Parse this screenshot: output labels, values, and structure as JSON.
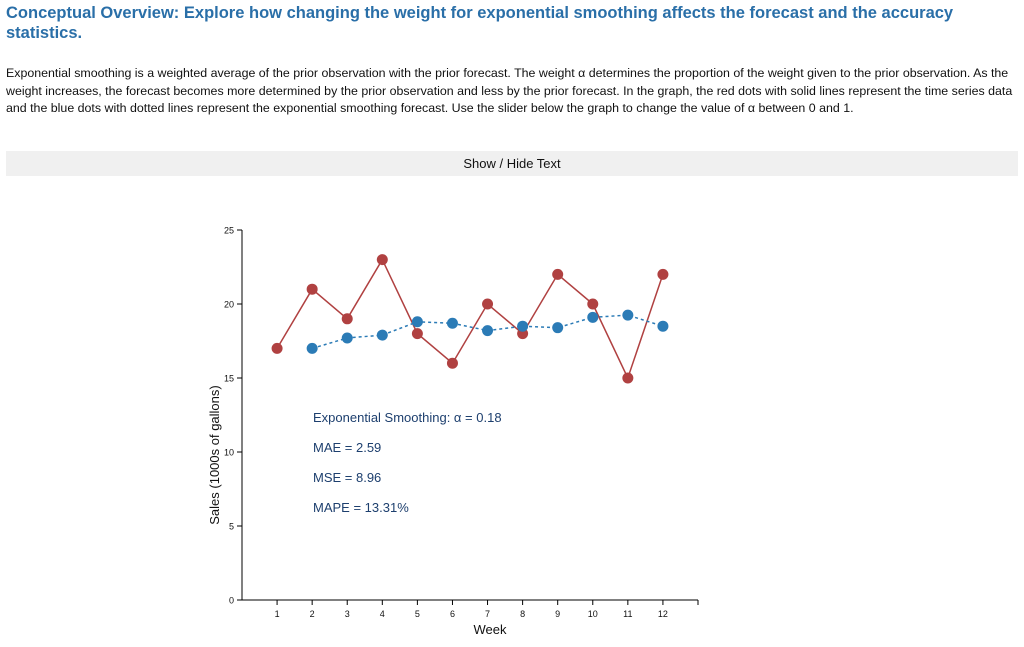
{
  "page": {
    "title": "Conceptual Overview: Explore how changing the weight for exponential smoothing affects the forecast and the accuracy statistics.",
    "intro": "Exponential smoothing is a weighted average of the prior observation with the prior forecast. The weight α determines the proportion of the weight given to the prior observation. As the weight increases, the forecast becomes more determined by the prior observation and less by the prior forecast. In the graph, the red dots with solid lines represent the time series data and the blue dots with dotted lines represent the exponential smoothing forecast. Use the slider below the graph to change the value of α between 0 and 1.",
    "toggle_label": "Show / Hide Text"
  },
  "stats": {
    "alpha_label": "Exponential Smoothing: α = 0.18",
    "mae": "MAE = 2.59",
    "mse": "MSE = 8.96",
    "mape": "MAPE = 13.31%"
  },
  "colors": {
    "data_series": "#b04141",
    "forecast_series": "#2b7bb6",
    "stats_text": "#1d3f6e",
    "title": "#2a6fa8"
  },
  "chart_data": {
    "type": "line",
    "xlabel": "Week",
    "ylabel": "Sales (1000s of gallons)",
    "xlim": [
      0,
      13
    ],
    "ylim": [
      0,
      25
    ],
    "x_ticks": [
      1,
      2,
      3,
      4,
      5,
      6,
      7,
      8,
      9,
      10,
      11,
      12
    ],
    "y_ticks": [
      0,
      5,
      10,
      15,
      20,
      25
    ],
    "series": [
      {
        "style": "solid",
        "color": "#b04141",
        "x": [
          1,
          2,
          3,
          4,
          5,
          6,
          7,
          8,
          9,
          10,
          11,
          12
        ],
        "values": [
          17,
          21,
          19,
          23,
          18,
          16,
          20,
          18,
          22,
          20,
          15,
          22
        ]
      },
      {
        "style": "dotted",
        "color": "#2b7bb6",
        "x": [
          2,
          3,
          4,
          5,
          6,
          7,
          8,
          9,
          10,
          11,
          12
        ],
        "values": [
          17.0,
          17.7,
          17.9,
          18.8,
          18.7,
          18.2,
          18.5,
          18.4,
          19.1,
          19.25,
          18.5
        ]
      }
    ]
  }
}
